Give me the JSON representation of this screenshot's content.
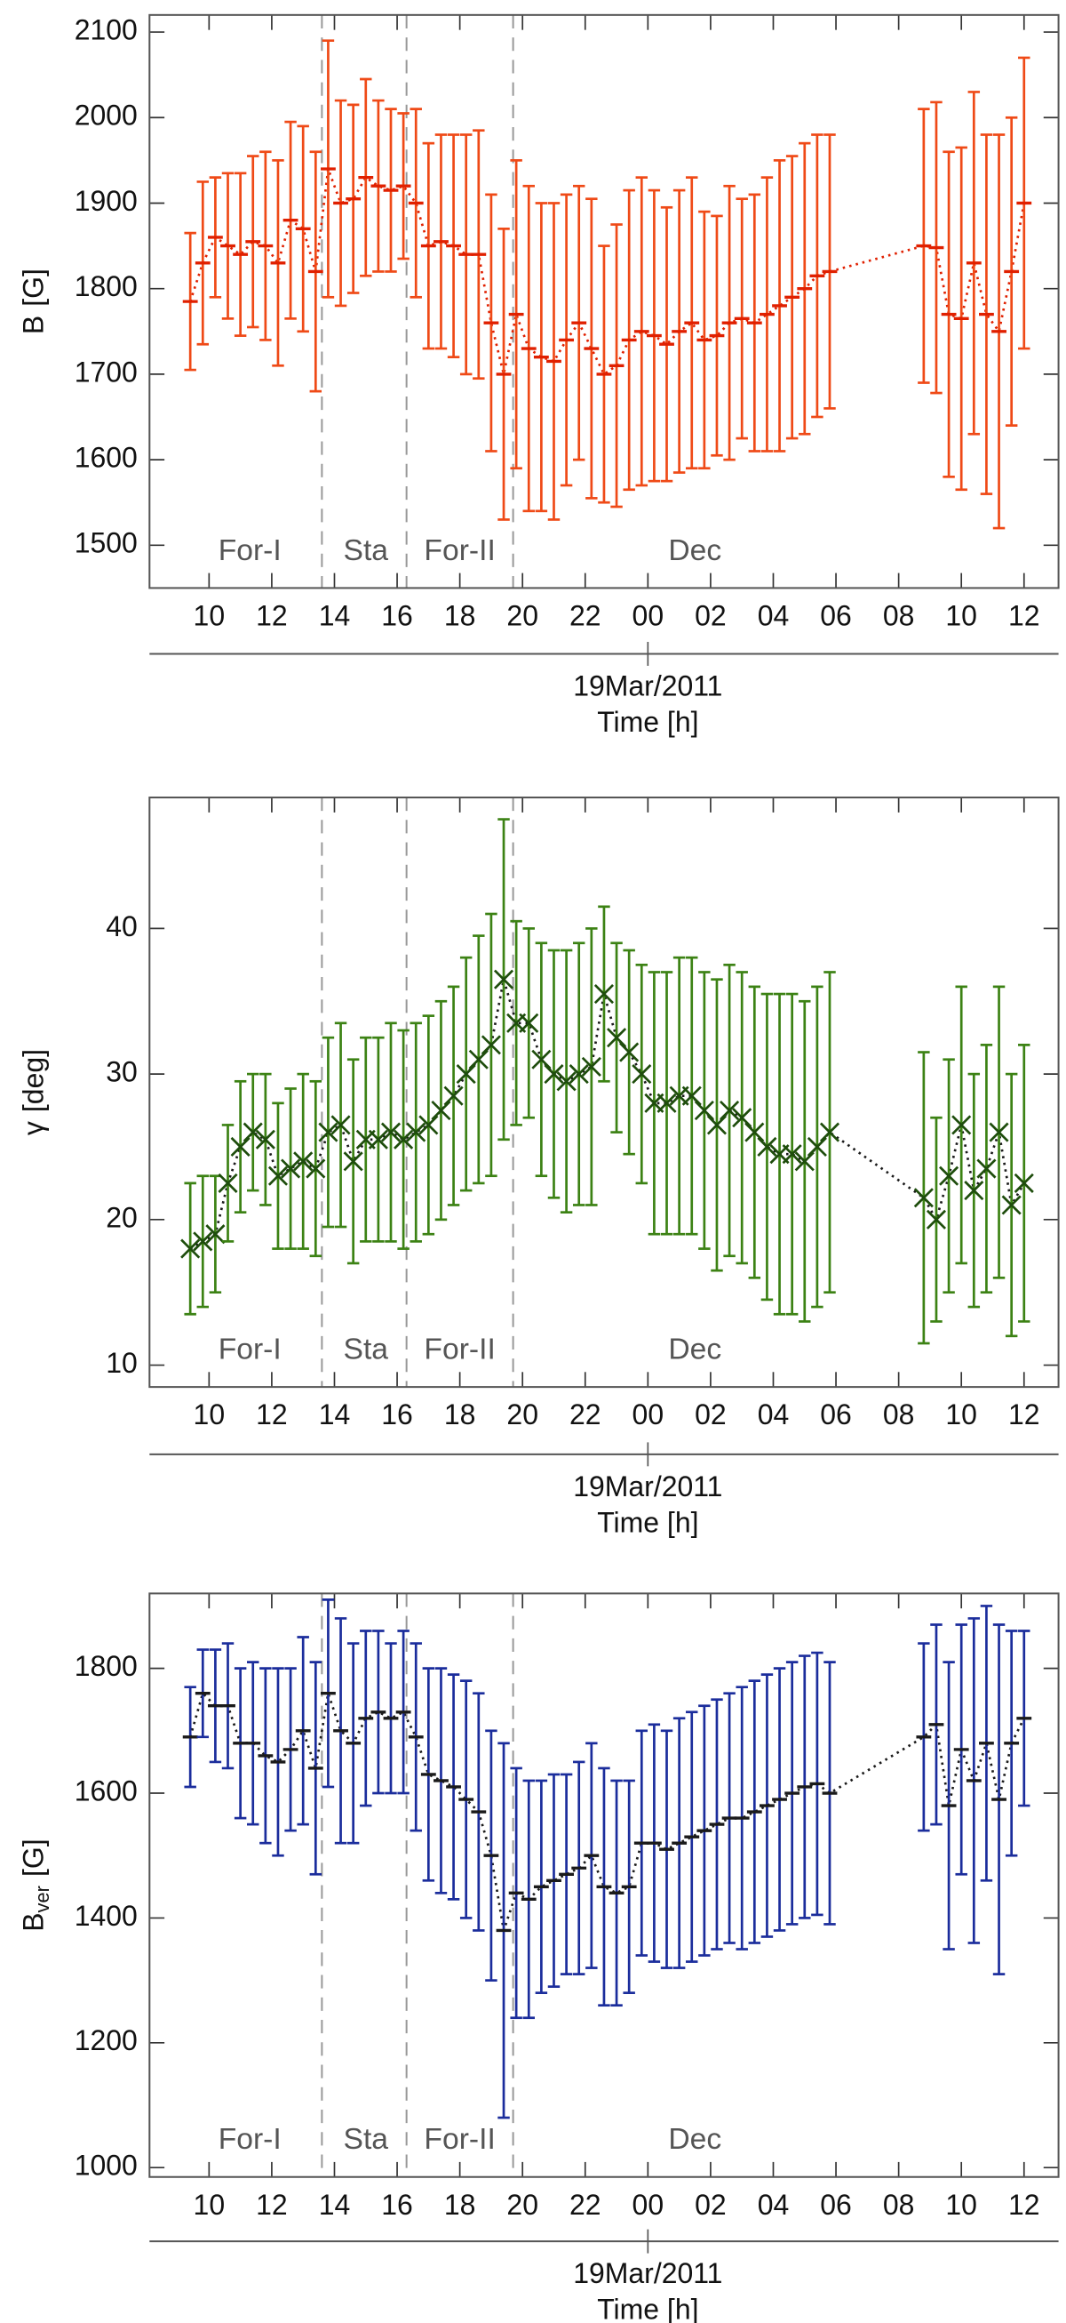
{
  "chart_data": [
    {
      "type": "errorbar",
      "ylabel": "B",
      "ylabel_unit": "[G]",
      "color": "#ef4a17",
      "line_color": "#e02000",
      "marker": "dash",
      "x": [
        9.4,
        9.8,
        10.2,
        10.6,
        11,
        11.4,
        11.8,
        12.2,
        12.6,
        13,
        13.4,
        13.8,
        14.2,
        14.6,
        15,
        15.4,
        15.8,
        16.2,
        16.6,
        17,
        17.4,
        17.8,
        18.2,
        18.6,
        19,
        19.4,
        19.8,
        20.2,
        20.6,
        21,
        21.4,
        21.8,
        22.2,
        22.6,
        23,
        23.4,
        23.8,
        24.2,
        24.6,
        25,
        25.4,
        25.8,
        26.2,
        26.6,
        27,
        27.4,
        27.8,
        28.2,
        28.6,
        29,
        29.4,
        29.8,
        32.8,
        33.2,
        33.6,
        34,
        34.4,
        34.8,
        35.2,
        35.6,
        36
      ],
      "values": [
        1785,
        1830,
        1860,
        1850,
        1840,
        1855,
        1850,
        1830,
        1880,
        1870,
        1820,
        1940,
        1900,
        1905,
        1930,
        1920,
        1915,
        1920,
        1900,
        1850,
        1855,
        1850,
        1840,
        1840,
        1760,
        1700,
        1770,
        1730,
        1720,
        1715,
        1740,
        1760,
        1730,
        1700,
        1710,
        1740,
        1750,
        1745,
        1735,
        1750,
        1760,
        1740,
        1745,
        1760,
        1765,
        1760,
        1770,
        1780,
        1790,
        1800,
        1815,
        1820,
        1850,
        1848,
        1770,
        1765,
        1830,
        1770,
        1750,
        1820,
        1900
      ],
      "errors": [
        80,
        95,
        70,
        85,
        95,
        100,
        110,
        120,
        115,
        120,
        140,
        150,
        120,
        110,
        115,
        100,
        95,
        85,
        110,
        120,
        125,
        130,
        140,
        145,
        150,
        170,
        180,
        190,
        180,
        185,
        170,
        160,
        175,
        150,
        165,
        175,
        180,
        170,
        160,
        165,
        170,
        150,
        140,
        160,
        140,
        150,
        160,
        170,
        165,
        170,
        165,
        160,
        160,
        170,
        190,
        200,
        200,
        210,
        230,
        180,
        170
      ],
      "xlim": [
        8.1,
        37.1
      ],
      "ylim": [
        1450,
        2120
      ],
      "yticks": [
        1500,
        1600,
        1700,
        1800,
        1900,
        2000,
        2100
      ],
      "xticks": [
        10,
        12,
        14,
        16,
        18,
        20,
        22,
        {
          "value": 24,
          "label": "00"
        },
        {
          "value": 26,
          "label": "02"
        },
        {
          "value": 28,
          "label": "04"
        },
        {
          "value": 30,
          "label": "06"
        },
        {
          "value": 32,
          "label": "08"
        },
        {
          "value": 34,
          "label": "10"
        },
        {
          "value": 36,
          "label": "12"
        }
      ],
      "vlines": [
        13.6,
        16.3,
        19.7
      ],
      "annotations": [
        {
          "text": "For-I",
          "x": 11.3
        },
        {
          "text": "Sta",
          "x": 15
        },
        {
          "text": "For-II",
          "x": 18
        },
        {
          "text": "Dec",
          "x": 25.5
        }
      ],
      "date_label": "19Mar/2011",
      "date_x": 24,
      "xlabel": "Time [h]"
    },
    {
      "type": "errorbar",
      "ylabel": "γ",
      "ylabel_unit": "[deg]",
      "color": "#3c8214",
      "line_color": "#1a1a1a",
      "marker": "x",
      "marker_color": "#1e4d0c",
      "x": [
        9.4,
        9.8,
        10.2,
        10.6,
        11,
        11.4,
        11.8,
        12.2,
        12.6,
        13,
        13.4,
        13.8,
        14.2,
        14.6,
        15,
        15.4,
        15.8,
        16.2,
        16.6,
        17,
        17.4,
        17.8,
        18.2,
        18.6,
        19,
        19.4,
        19.8,
        20.2,
        20.6,
        21,
        21.4,
        21.8,
        22.2,
        22.6,
        23,
        23.4,
        23.8,
        24.2,
        24.6,
        25,
        25.4,
        25.8,
        26.2,
        26.6,
        27,
        27.4,
        27.8,
        28.2,
        28.6,
        29,
        29.4,
        29.8,
        32.8,
        33.2,
        33.6,
        34,
        34.4,
        34.8,
        35.2,
        35.6,
        36
      ],
      "values": [
        18,
        18.5,
        19,
        22.5,
        25,
        26,
        25.5,
        23,
        23.5,
        24,
        23.5,
        26,
        26.5,
        24,
        25.5,
        25.5,
        26,
        25.5,
        26,
        26.5,
        27.5,
        28.5,
        30,
        31,
        32,
        36.5,
        33.5,
        33.5,
        31,
        30,
        29.5,
        30,
        30.5,
        35.5,
        32.5,
        31.5,
        30,
        28,
        28,
        28.5,
        28.5,
        27.5,
        26.5,
        27.5,
        27,
        26,
        25,
        24.5,
        24.5,
        24,
        25,
        26,
        21.5,
        20,
        23,
        26.5,
        22,
        23.5,
        26,
        21,
        22.5
      ],
      "errors": [
        4.5,
        4.5,
        4,
        4,
        4.5,
        4,
        4.5,
        5,
        5.5,
        6,
        6,
        6.5,
        7,
        7,
        7,
        7,
        7.5,
        7.5,
        7.5,
        7.5,
        7.5,
        7.5,
        8,
        8.5,
        9,
        11,
        7,
        6.5,
        8,
        8.5,
        9,
        9,
        9.5,
        6,
        6.5,
        7,
        7.5,
        9,
        9,
        9.5,
        9.5,
        9.5,
        10,
        10,
        10,
        10,
        10.5,
        11,
        11,
        11,
        11,
        11,
        10,
        7,
        8,
        9.5,
        8,
        8.5,
        10,
        9,
        9.5
      ],
      "xlim": [
        8.1,
        37.1
      ],
      "ylim": [
        8.5,
        49
      ],
      "yticks": [
        10,
        20,
        30,
        40
      ],
      "xticks": [
        10,
        12,
        14,
        16,
        18,
        20,
        22,
        {
          "value": 24,
          "label": "00"
        },
        {
          "value": 26,
          "label": "02"
        },
        {
          "value": 28,
          "label": "04"
        },
        {
          "value": 30,
          "label": "06"
        },
        {
          "value": 32,
          "label": "08"
        },
        {
          "value": 34,
          "label": "10"
        },
        {
          "value": 36,
          "label": "12"
        }
      ],
      "vlines": [
        13.6,
        16.3,
        19.7
      ],
      "annotations": [
        {
          "text": "For-I",
          "x": 11.3
        },
        {
          "text": "Sta",
          "x": 15
        },
        {
          "text": "For-II",
          "x": 18
        },
        {
          "text": "Dec",
          "x": 25.5
        }
      ],
      "date_label": "19Mar/2011",
      "date_x": 24,
      "xlabel": "Time [h]"
    },
    {
      "type": "errorbar",
      "ylabel": "B",
      "ylabel_sub": "ver",
      "ylabel_unit": "[G]",
      "color": "#1b2d9c",
      "line_color": "#1a1a1a",
      "marker": "dash",
      "x": [
        9.4,
        9.8,
        10.2,
        10.6,
        11,
        11.4,
        11.8,
        12.2,
        12.6,
        13,
        13.4,
        13.8,
        14.2,
        14.6,
        15,
        15.4,
        15.8,
        16.2,
        16.6,
        17,
        17.4,
        17.8,
        18.2,
        18.6,
        19,
        19.4,
        19.8,
        20.2,
        20.6,
        21,
        21.4,
        21.8,
        22.2,
        22.6,
        23,
        23.4,
        23.8,
        24.2,
        24.6,
        25,
        25.4,
        25.8,
        26.2,
        26.6,
        27,
        27.4,
        27.8,
        28.2,
        28.6,
        29,
        29.4,
        29.8,
        32.8,
        33.2,
        33.6,
        34,
        34.4,
        34.8,
        35.2,
        35.6,
        36
      ],
      "values": [
        1690,
        1760,
        1740,
        1740,
        1680,
        1680,
        1660,
        1650,
        1670,
        1700,
        1640,
        1760,
        1700,
        1680,
        1720,
        1730,
        1720,
        1730,
        1690,
        1630,
        1620,
        1610,
        1590,
        1570,
        1500,
        1380,
        1440,
        1430,
        1450,
        1460,
        1470,
        1480,
        1500,
        1450,
        1440,
        1450,
        1520,
        1520,
        1510,
        1520,
        1530,
        1540,
        1550,
        1560,
        1560,
        1570,
        1580,
        1590,
        1600,
        1610,
        1615,
        1600,
        1690,
        1710,
        1580,
        1670,
        1620,
        1680,
        1590,
        1680,
        1720
      ],
      "errors": [
        80,
        70,
        90,
        100,
        120,
        130,
        140,
        150,
        130,
        150,
        170,
        150,
        180,
        160,
        140,
        130,
        120,
        130,
        150,
        170,
        180,
        180,
        190,
        190,
        200,
        300,
        200,
        190,
        170,
        170,
        160,
        170,
        180,
        190,
        180,
        170,
        180,
        190,
        190,
        200,
        200,
        200,
        200,
        200,
        210,
        210,
        210,
        210,
        210,
        210,
        210,
        210,
        150,
        160,
        230,
        200,
        260,
        220,
        280,
        180,
        140
      ],
      "xlim": [
        8.1,
        37.1
      ],
      "ylim": [
        985,
        1920
      ],
      "yticks": [
        1000,
        1200,
        1400,
        1600,
        1800
      ],
      "xticks": [
        10,
        12,
        14,
        16,
        18,
        20,
        22,
        {
          "value": 24,
          "label": "00"
        },
        {
          "value": 26,
          "label": "02"
        },
        {
          "value": 28,
          "label": "04"
        },
        {
          "value": 30,
          "label": "06"
        },
        {
          "value": 32,
          "label": "08"
        },
        {
          "value": 34,
          "label": "10"
        },
        {
          "value": 36,
          "label": "12"
        }
      ],
      "vlines": [
        13.6,
        16.3,
        19.7
      ],
      "annotations": [
        {
          "text": "For-I",
          "x": 11.3
        },
        {
          "text": "Sta",
          "x": 15
        },
        {
          "text": "For-II",
          "x": 18
        },
        {
          "text": "Dec",
          "x": 25.5
        }
      ],
      "date_label": "19Mar/2011",
      "date_x": 24,
      "xlabel": "Time [h]"
    }
  ]
}
